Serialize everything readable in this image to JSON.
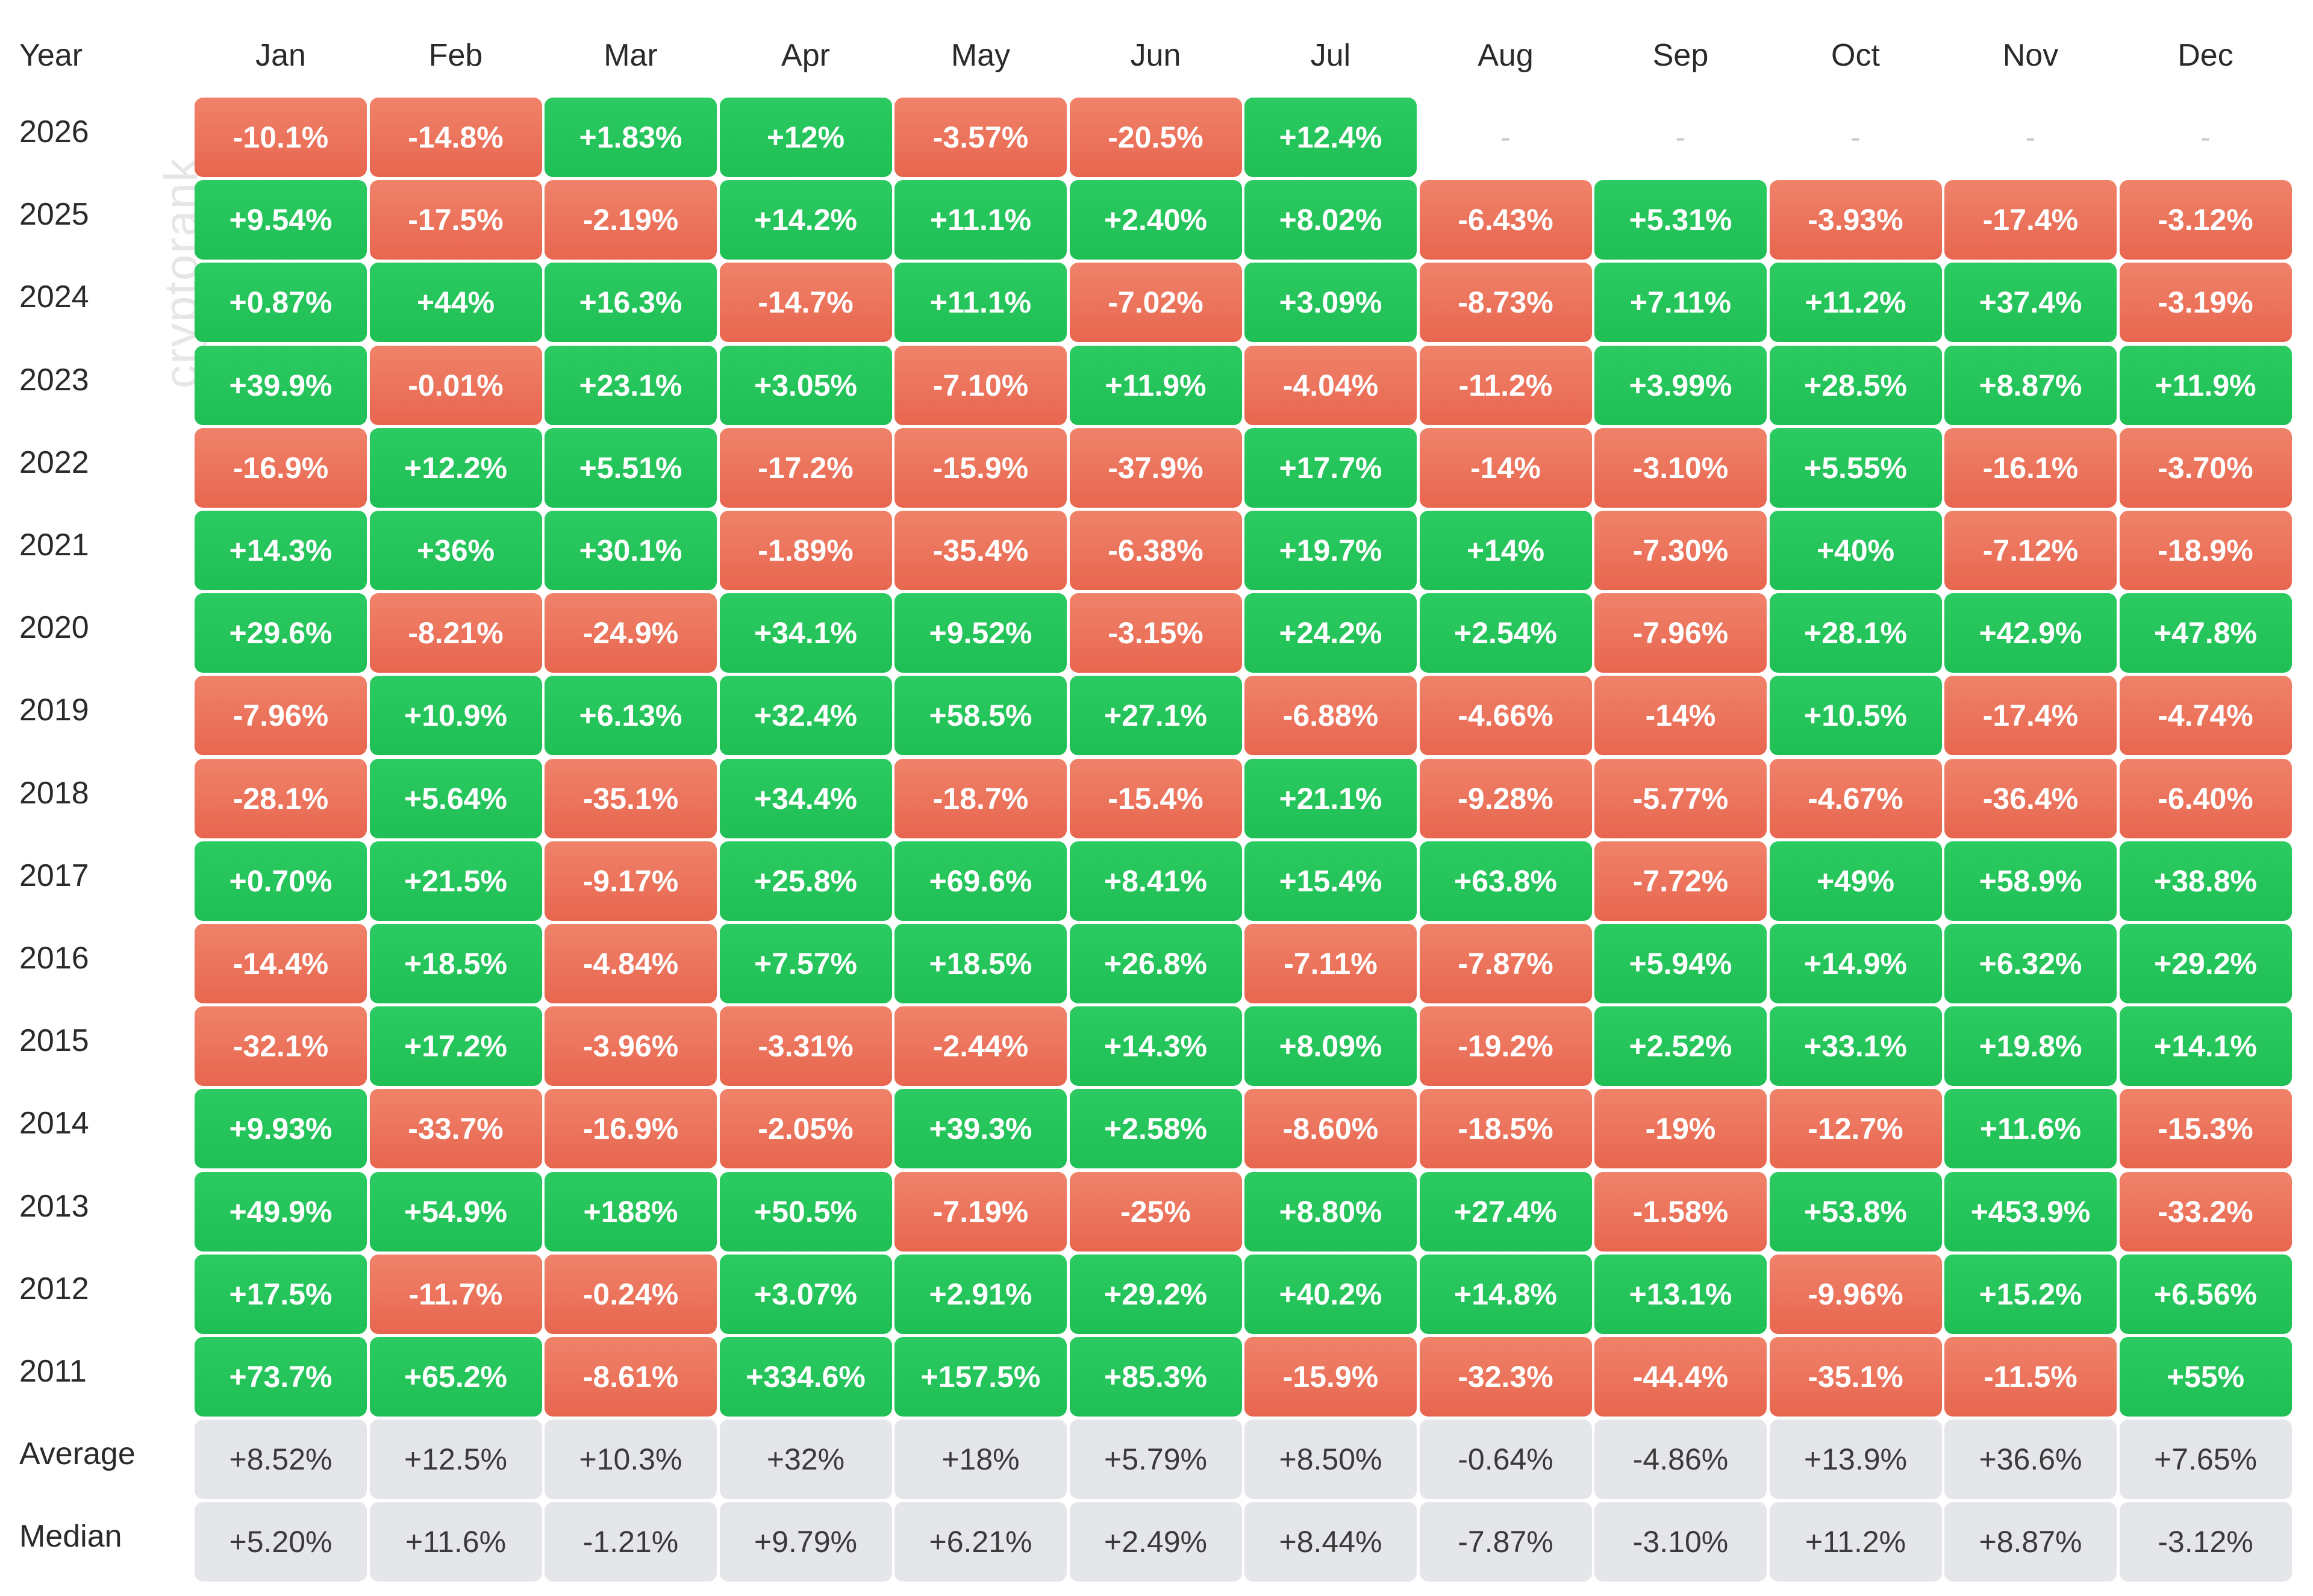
{
  "chart_data": {
    "type": "heatmap",
    "corner_label": "Year",
    "watermark": "cryptorank",
    "months": [
      "Jan",
      "Feb",
      "Mar",
      "Apr",
      "May",
      "Jun",
      "Jul",
      "Aug",
      "Sep",
      "Oct",
      "Nov",
      "Dec"
    ],
    "rows": [
      {
        "label": "2026",
        "values": [
          "-10.1%",
          "-14.8%",
          "+1.83%",
          "+12%",
          "-3.57%",
          "-20.5%",
          "+12.4%",
          "-",
          "-",
          "-",
          "-",
          "-"
        ]
      },
      {
        "label": "2025",
        "values": [
          "+9.54%",
          "-17.5%",
          "-2.19%",
          "+14.2%",
          "+11.1%",
          "+2.40%",
          "+8.02%",
          "-6.43%",
          "+5.31%",
          "-3.93%",
          "-17.4%",
          "-3.12%"
        ]
      },
      {
        "label": "2024",
        "values": [
          "+0.87%",
          "+44%",
          "+16.3%",
          "-14.7%",
          "+11.1%",
          "-7.02%",
          "+3.09%",
          "-8.73%",
          "+7.11%",
          "+11.2%",
          "+37.4%",
          "-3.19%"
        ]
      },
      {
        "label": "2023",
        "values": [
          "+39.9%",
          "-0.01%",
          "+23.1%",
          "+3.05%",
          "-7.10%",
          "+11.9%",
          "-4.04%",
          "-11.2%",
          "+3.99%",
          "+28.5%",
          "+8.87%",
          "+11.9%"
        ]
      },
      {
        "label": "2022",
        "values": [
          "-16.9%",
          "+12.2%",
          "+5.51%",
          "-17.2%",
          "-15.9%",
          "-37.9%",
          "+17.7%",
          "-14%",
          "-3.10%",
          "+5.55%",
          "-16.1%",
          "-3.70%"
        ]
      },
      {
        "label": "2021",
        "values": [
          "+14.3%",
          "+36%",
          "+30.1%",
          "-1.89%",
          "-35.4%",
          "-6.38%",
          "+19.7%",
          "+14%",
          "-7.30%",
          "+40%",
          "-7.12%",
          "-18.9%"
        ]
      },
      {
        "label": "2020",
        "values": [
          "+29.6%",
          "-8.21%",
          "-24.9%",
          "+34.1%",
          "+9.52%",
          "-3.15%",
          "+24.2%",
          "+2.54%",
          "-7.96%",
          "+28.1%",
          "+42.9%",
          "+47.8%"
        ]
      },
      {
        "label": "2019",
        "values": [
          "-7.96%",
          "+10.9%",
          "+6.13%",
          "+32.4%",
          "+58.5%",
          "+27.1%",
          "-6.88%",
          "-4.66%",
          "-14%",
          "+10.5%",
          "-17.4%",
          "-4.74%"
        ]
      },
      {
        "label": "2018",
        "values": [
          "-28.1%",
          "+5.64%",
          "-35.1%",
          "+34.4%",
          "-18.7%",
          "-15.4%",
          "+21.1%",
          "-9.28%",
          "-5.77%",
          "-4.67%",
          "-36.4%",
          "-6.40%"
        ]
      },
      {
        "label": "2017",
        "values": [
          "+0.70%",
          "+21.5%",
          "-9.17%",
          "+25.8%",
          "+69.6%",
          "+8.41%",
          "+15.4%",
          "+63.8%",
          "-7.72%",
          "+49%",
          "+58.9%",
          "+38.8%"
        ]
      },
      {
        "label": "2016",
        "values": [
          "-14.4%",
          "+18.5%",
          "-4.84%",
          "+7.57%",
          "+18.5%",
          "+26.8%",
          "-7.11%",
          "-7.87%",
          "+5.94%",
          "+14.9%",
          "+6.32%",
          "+29.2%"
        ]
      },
      {
        "label": "2015",
        "values": [
          "-32.1%",
          "+17.2%",
          "-3.96%",
          "-3.31%",
          "-2.44%",
          "+14.3%",
          "+8.09%",
          "-19.2%",
          "+2.52%",
          "+33.1%",
          "+19.8%",
          "+14.1%"
        ]
      },
      {
        "label": "2014",
        "values": [
          "+9.93%",
          "-33.7%",
          "-16.9%",
          "-2.05%",
          "+39.3%",
          "+2.58%",
          "-8.60%",
          "-18.5%",
          "-19%",
          "-12.7%",
          "+11.6%",
          "-15.3%"
        ]
      },
      {
        "label": "2013",
        "values": [
          "+49.9%",
          "+54.9%",
          "+188%",
          "+50.5%",
          "-7.19%",
          "-25%",
          "+8.80%",
          "+27.4%",
          "-1.58%",
          "+53.8%",
          "+453.9%",
          "-33.2%"
        ]
      },
      {
        "label": "2012",
        "values": [
          "+17.5%",
          "-11.7%",
          "-0.24%",
          "+3.07%",
          "+2.91%",
          "+29.2%",
          "+40.2%",
          "+14.8%",
          "+13.1%",
          "-9.96%",
          "+15.2%",
          "+6.56%"
        ]
      },
      {
        "label": "2011",
        "values": [
          "+73.7%",
          "+65.2%",
          "-8.61%",
          "+334.6%",
          "+157.5%",
          "+85.3%",
          "-15.9%",
          "-32.3%",
          "-44.4%",
          "-35.1%",
          "-11.5%",
          "+55%"
        ]
      }
    ],
    "summary_rows": [
      {
        "label": "Average",
        "values": [
          "+8.52%",
          "+12.5%",
          "+10.3%",
          "+32%",
          "+18%",
          "+5.79%",
          "+8.50%",
          "-0.64%",
          "-4.86%",
          "+13.9%",
          "+36.6%",
          "+7.65%"
        ]
      },
      {
        "label": "Median",
        "values": [
          "+5.20%",
          "+11.6%",
          "-1.21%",
          "+9.79%",
          "+6.21%",
          "+2.49%",
          "+8.44%",
          "-7.87%",
          "-3.10%",
          "+11.2%",
          "+8.87%",
          "-3.12%"
        ]
      }
    ],
    "colors": {
      "positive": "#22c55e",
      "negative": "#ec6d55",
      "summary": "#e4e6ea",
      "empty_text": "#c8c8c8"
    }
  }
}
